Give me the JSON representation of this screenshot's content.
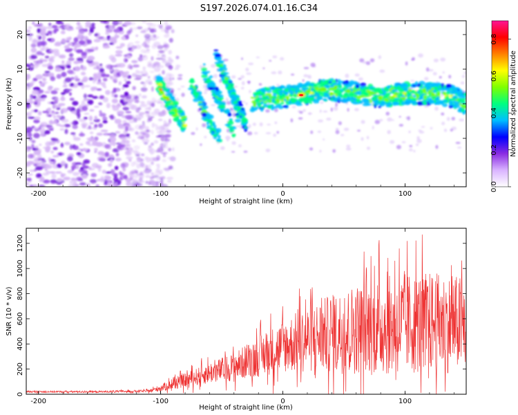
{
  "page_title": "S197.2026.074.01.16.C34",
  "chart_data": [
    {
      "type": "heatmap",
      "name": "spectrogram",
      "xlabel": "Height of straight line (km)",
      "ylabel": "Frequency (Hz)",
      "xlim": [
        -210,
        150
      ],
      "ylim": [
        -24,
        24
      ],
      "xticks": [
        -200,
        -100,
        0,
        100
      ],
      "yticks": [
        -20,
        -10,
        0,
        10,
        20
      ],
      "colorbar": {
        "label": "Normalized spectral amplitude",
        "range": [
          0.0,
          0.9
        ],
        "ticks": [
          0.0,
          0.2,
          0.4,
          0.6,
          0.8
        ],
        "colormap": [
          "#ffffff",
          "#d9b3ff",
          "#8a2be2",
          "#0000ff",
          "#00bfff",
          "#00ff80",
          "#7fff00",
          "#ffff00",
          "#ff8000",
          "#ff0000",
          "#ff1493"
        ]
      },
      "features": [
        {
          "name": "noise-region",
          "x_range": [
            -210,
            -100
          ],
          "y_range": [
            -24,
            24
          ],
          "amplitude": 0.1
        },
        {
          "name": "signal-band-left",
          "points": [
            [
              -102,
              6
            ],
            [
              -95,
              2
            ],
            [
              -88,
              -2
            ],
            [
              -80,
              -6
            ]
          ],
          "amplitude": 0.4
        },
        {
          "name": "signal-band-main",
          "points": [
            [
              -25,
              1
            ],
            [
              0,
              2
            ],
            [
              20,
              3
            ],
            [
              40,
              4
            ],
            [
              60,
              3
            ],
            [
              80,
              2
            ],
            [
              100,
              3
            ],
            [
              120,
              3
            ],
            [
              140,
              2
            ],
            [
              150,
              0
            ]
          ],
          "amplitude": 0.5
        },
        {
          "name": "signal-peak",
          "points": [
            [
              15,
              2.5
            ]
          ],
          "amplitude": 0.9
        }
      ]
    },
    {
      "type": "line",
      "name": "snr",
      "xlabel": "Height of straight line (km)",
      "ylabel": "SNR (10 * v/v)",
      "xlim": [
        -210,
        150
      ],
      "ylim": [
        0,
        1320
      ],
      "xticks": [
        -200,
        -100,
        0,
        100
      ],
      "yticks": [
        0,
        200,
        400,
        600,
        800,
        1000,
        1200
      ],
      "color": "#ee3333",
      "envelope": {
        "x": [
          -210,
          -150,
          -110,
          -100,
          -80,
          -60,
          -40,
          -20,
          0,
          20,
          40,
          60,
          80,
          100,
          120,
          140,
          150
        ],
        "mean": [
          20,
          20,
          25,
          50,
          110,
          170,
          220,
          300,
          380,
          440,
          480,
          520,
          540,
          560,
          570,
          560,
          550
        ],
        "spread": [
          10,
          10,
          15,
          40,
          80,
          120,
          160,
          230,
          300,
          380,
          450,
          520,
          560,
          580,
          580,
          560,
          560
        ]
      }
    }
  ]
}
